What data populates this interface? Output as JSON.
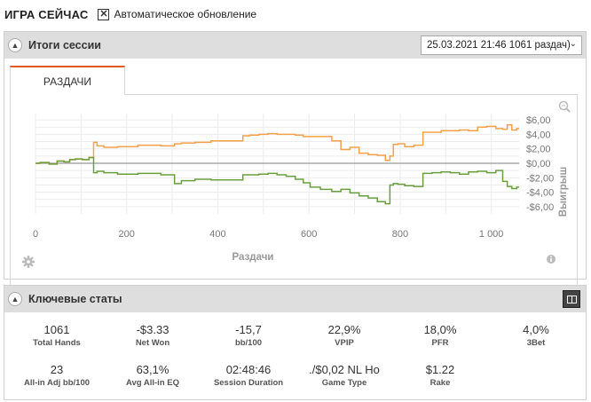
{
  "header": {
    "title": "ИГРА СЕЙЧАС",
    "auto_update_label": "Автоматическое обновление",
    "auto_update_checked": true
  },
  "session": {
    "title": "Итоги сессии",
    "selected": "25.03.2021 21:46 1061 раздач)",
    "tab_label": "РАЗДАЧИ"
  },
  "chart_data": {
    "type": "line",
    "xlabel": "Раздачи",
    "ylabel": "Выигрыш",
    "xlim": [
      0,
      1061
    ],
    "ylim": [
      -6.5,
      6.5
    ],
    "x_ticks": [
      "0",
      "200",
      "400",
      "600",
      "800",
      "1 000"
    ],
    "y_ticks": [
      "$6,00",
      "$4,00",
      "$2,00",
      "$0,00",
      "-$2,00",
      "-$4,00",
      "-$6,00"
    ],
    "zero_line": true,
    "series": [
      {
        "color": "#f5a04a",
        "x": [
          0,
          20,
          40,
          55,
          70,
          80,
          95,
          110,
          125,
          130,
          140,
          160,
          200,
          250,
          300,
          310,
          330,
          370,
          400,
          450,
          460,
          480,
          500,
          520,
          540,
          560,
          580,
          595,
          610,
          640,
          660,
          680,
          700,
          720,
          740,
          760,
          775,
          780,
          790,
          800,
          820,
          840,
          860,
          880,
          900,
          920,
          940,
          960,
          980,
          1000,
          1020,
          1030,
          1040,
          1050,
          1061
        ],
        "y": [
          0,
          0.1,
          -0.1,
          0.3,
          0.2,
          0.5,
          0.6,
          0.5,
          0.8,
          2.9,
          2.4,
          2.2,
          2.3,
          2.5,
          2.4,
          2.7,
          2.8,
          2.9,
          3.1,
          3.1,
          3.8,
          3.9,
          4.0,
          4.1,
          4.0,
          4.0,
          3.9,
          3.7,
          3.7,
          3.7,
          3.1,
          1.9,
          2.2,
          1.4,
          1.2,
          1.1,
          0.4,
          1.0,
          2.6,
          2.7,
          2.3,
          2.5,
          4.3,
          4.3,
          4.5,
          4.5,
          4.6,
          4.5,
          5.0,
          5.1,
          4.8,
          4.7,
          5.3,
          4.6,
          4.8
        ]
      },
      {
        "color": "#6a9f3e",
        "x": [
          0,
          20,
          40,
          55,
          70,
          80,
          95,
          110,
          125,
          130,
          140,
          160,
          200,
          250,
          300,
          310,
          330,
          370,
          400,
          450,
          460,
          480,
          500,
          520,
          540,
          560,
          580,
          595,
          610,
          640,
          660,
          680,
          700,
          720,
          740,
          760,
          775,
          780,
          790,
          800,
          820,
          840,
          860,
          880,
          900,
          920,
          940,
          960,
          980,
          1000,
          1020,
          1030,
          1040,
          1050,
          1061
        ],
        "y": [
          0,
          0.1,
          -0.1,
          0.3,
          0.2,
          0.5,
          0.6,
          0.5,
          0.8,
          -1.3,
          -1.1,
          -1.3,
          -1.5,
          -1.4,
          -1.6,
          -2.8,
          -2.4,
          -2.2,
          -2.3,
          -2.3,
          -1.6,
          -1.6,
          -1.5,
          -1.4,
          -1.6,
          -1.8,
          -2.2,
          -2.7,
          -3.3,
          -3.6,
          -3.9,
          -3.6,
          -4.1,
          -4.5,
          -4.8,
          -5.3,
          -5.6,
          -3.0,
          -2.8,
          -2.9,
          -3.1,
          -3.2,
          -1.4,
          -1.3,
          -1.2,
          -1.3,
          -1.5,
          -1.2,
          -1.1,
          -1.3,
          -1.0,
          -2.5,
          -3.2,
          -3.5,
          -3.3
        ]
      }
    ]
  },
  "key_stats": {
    "title": "Ключевые статы",
    "items": [
      {
        "value": "1061",
        "label": "Total Hands"
      },
      {
        "value": "-$3.33",
        "label": "Net Won"
      },
      {
        "value": "-15,7",
        "label": "bb/100"
      },
      {
        "value": "22,9%",
        "label": "VPIP"
      },
      {
        "value": "18,0%",
        "label": "PFR"
      },
      {
        "value": "4,0%",
        "label": "3Bet"
      },
      {
        "value": "23",
        "label": "All-in Adj bb/100"
      },
      {
        "value": "63,1%",
        "label": "Avg All-in EQ"
      },
      {
        "value": "02:48:46",
        "label": "Session Duration"
      },
      {
        "value": "./$0,02 NL Ho",
        "label": "Game Type"
      },
      {
        "value": "$1.22",
        "label": "Rake"
      }
    ]
  }
}
